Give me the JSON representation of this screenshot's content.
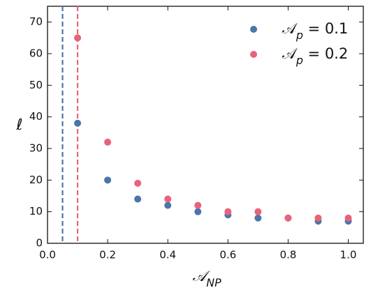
{
  "chart_data": {
    "type": "scatter",
    "xlabel": "𝒜NP",
    "ylabel": "ℓ",
    "xlim": [
      0,
      1.05
    ],
    "ylim": [
      0,
      75
    ],
    "xticks": [
      {
        "value": 0,
        "label": "0.0"
      },
      {
        "value": 0.2,
        "label": "0.2"
      },
      {
        "value": 0.4,
        "label": "0.4"
      },
      {
        "value": 0.6,
        "label": "0.6"
      },
      {
        "value": 0.8,
        "label": "0.8"
      },
      {
        "value": 1,
        "label": "1.0"
      }
    ],
    "yticks": [
      0,
      10,
      20,
      30,
      40,
      50,
      60,
      70
    ],
    "legend": "upper right",
    "vlines": [
      {
        "x": 0.05,
        "color": "#4a76a8"
      },
      {
        "x": 0.1,
        "color": "#e8637a"
      }
    ],
    "series": [
      {
        "name": "𝒜p = 0.1",
        "color": "#4a76a8",
        "x": [
          0.1,
          0.2,
          0.3,
          0.4,
          0.5,
          0.6,
          0.7,
          0.8,
          0.9,
          1.0
        ],
        "values": [
          38,
          20,
          14,
          12,
          10,
          9,
          8,
          8,
          7,
          7
        ]
      },
      {
        "name": "𝒜p = 0.2",
        "color": "#e8637a",
        "x": [
          0.1,
          0.2,
          0.3,
          0.4,
          0.5,
          0.6,
          0.7,
          0.8,
          0.9,
          1.0
        ],
        "values": [
          65,
          32,
          19,
          14,
          12,
          10,
          10,
          8,
          8,
          8
        ]
      }
    ]
  }
}
